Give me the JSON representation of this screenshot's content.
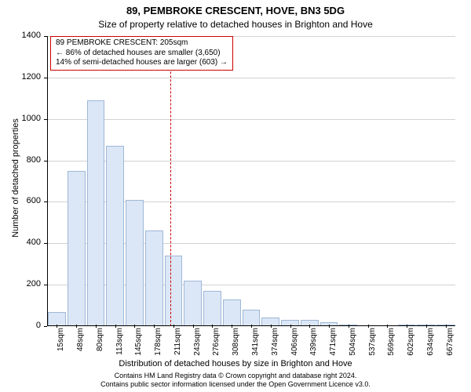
{
  "title": {
    "main": "89, PEMBROKE CRESCENT, HOVE, BN3 5DG",
    "sub": "Size of property relative to detached houses in Brighton and Hove"
  },
  "chart": {
    "type": "bar",
    "y": {
      "label": "Number of detached properties",
      "min": 0,
      "max": 1400,
      "step": 200,
      "label_fontsize": 11
    },
    "x": {
      "label": "Distribution of detached houses by size in Brighton and Hove",
      "categories": [
        "15sqm",
        "48sqm",
        "80sqm",
        "113sqm",
        "145sqm",
        "178sqm",
        "211sqm",
        "243sqm",
        "276sqm",
        "308sqm",
        "341sqm",
        "374sqm",
        "406sqm",
        "439sqm",
        "471sqm",
        "504sqm",
        "537sqm",
        "569sqm",
        "602sqm",
        "634sqm",
        "667sqm"
      ],
      "label_fontsize": 11
    },
    "bars": {
      "values": [
        70,
        750,
        1090,
        870,
        610,
        460,
        340,
        220,
        170,
        130,
        80,
        40,
        30,
        30,
        20,
        6,
        0,
        0,
        6,
        3,
        3
      ],
      "fill": "#dbe7f6",
      "border": "#9fb7d7",
      "width_ratio": 0.92
    },
    "refline": {
      "value_sqm": 205,
      "color": "#cc0000"
    },
    "annotation": {
      "lines": [
        "89 PEMBROKE CRESCENT: 205sqm",
        "← 86% of detached houses are smaller (3,650)",
        "14% of semi-detached houses are larger (603) →"
      ],
      "border_color": "#cc0000",
      "fontsize": 10
    },
    "grid_color": "#bfbfbf",
    "background_color": "#ffffff"
  },
  "footnote": {
    "line1": "Contains HM Land Registry data © Crown copyright and database right 2024.",
    "line2": "Contains public sector information licensed under the Open Government Licence v3.0."
  }
}
